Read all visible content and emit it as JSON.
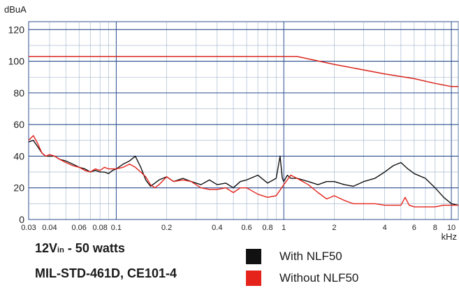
{
  "chart_data": {
    "type": "line",
    "ylabel": "dBuA",
    "xlabel": "kHz",
    "x_scale": "log",
    "xlim": [
      0.03,
      11
    ],
    "ylim": [
      0,
      125
    ],
    "x_ticks": [
      {
        "v": 0.03,
        "label": "0.03"
      },
      {
        "v": 0.04,
        "label": "0.04"
      },
      {
        "v": 0.06,
        "label": "0.06"
      },
      {
        "v": 0.08,
        "label": "0.08"
      },
      {
        "v": 0.1,
        "label": "0.1"
      },
      {
        "v": 0.2,
        "label": "0.2"
      },
      {
        "v": 0.4,
        "label": "0.4"
      },
      {
        "v": 0.6,
        "label": "0.6"
      },
      {
        "v": 0.8,
        "label": "0.8"
      },
      {
        "v": 1,
        "label": "1"
      },
      {
        "v": 2,
        "label": "2"
      },
      {
        "v": 4,
        "label": "4"
      },
      {
        "v": 6,
        "label": "6"
      },
      {
        "v": 8,
        "label": "8"
      },
      {
        "v": 10,
        "label": "10"
      }
    ],
    "y_ticks": [
      0,
      20,
      40,
      60,
      80,
      100,
      120
    ],
    "grid": true,
    "legend_position": "bottom-right",
    "limit": {
      "color": "#d9261c",
      "x": [
        0.03,
        1.0,
        1.2,
        2,
        4,
        6,
        8,
        10,
        11
      ],
      "y": [
        103,
        103,
        103,
        98,
        92,
        89,
        86,
        84,
        84
      ]
    },
    "series": [
      {
        "name": "With NLF50",
        "color": "#111111",
        "x": [
          0.03,
          0.032,
          0.034,
          0.036,
          0.038,
          0.04,
          0.043,
          0.046,
          0.05,
          0.055,
          0.06,
          0.065,
          0.07,
          0.075,
          0.08,
          0.085,
          0.09,
          0.095,
          0.1,
          0.11,
          0.12,
          0.13,
          0.14,
          0.15,
          0.16,
          0.17,
          0.18,
          0.2,
          0.22,
          0.25,
          0.28,
          0.32,
          0.36,
          0.4,
          0.45,
          0.5,
          0.55,
          0.6,
          0.7,
          0.8,
          0.9,
          0.95,
          0.98,
          1.0,
          1.05,
          1.1,
          1.2,
          1.4,
          1.6,
          1.8,
          2.0,
          2.3,
          2.6,
          3.0,
          3.5,
          4.0,
          4.5,
          5.0,
          5.5,
          6.0,
          7.0,
          8.0,
          9.0,
          10.0,
          11.0
        ],
        "y": [
          49,
          50,
          46,
          42,
          40,
          40,
          40,
          38,
          37,
          35,
          33,
          32,
          30,
          31,
          30,
          30,
          29,
          31,
          32,
          35,
          37,
          40,
          33,
          25,
          21,
          23,
          25,
          27,
          24,
          26,
          24,
          22,
          25,
          22,
          23,
          20,
          24,
          25,
          28,
          23,
          26,
          40,
          26,
          24,
          28,
          26,
          26,
          24,
          22,
          24,
          24,
          22,
          21,
          24,
          26,
          30,
          34,
          36,
          32,
          29,
          26,
          20,
          14,
          10,
          9
        ]
      },
      {
        "name": "Without NLF50",
        "color": "#e5231b",
        "x": [
          0.03,
          0.032,
          0.034,
          0.036,
          0.038,
          0.04,
          0.043,
          0.046,
          0.05,
          0.055,
          0.06,
          0.065,
          0.07,
          0.075,
          0.08,
          0.085,
          0.09,
          0.1,
          0.11,
          0.12,
          0.13,
          0.14,
          0.15,
          0.16,
          0.17,
          0.18,
          0.2,
          0.22,
          0.25,
          0.28,
          0.32,
          0.36,
          0.4,
          0.45,
          0.5,
          0.55,
          0.6,
          0.7,
          0.8,
          0.9,
          1.0,
          1.1,
          1.2,
          1.4,
          1.6,
          1.8,
          2.0,
          2.3,
          2.6,
          3.0,
          3.5,
          4.0,
          4.5,
          5.0,
          5.3,
          5.6,
          6.0,
          7.0,
          8.0,
          9.0,
          10.0,
          11.0
        ],
        "y": [
          50,
          53,
          48,
          42,
          40,
          41,
          40,
          38,
          36,
          34,
          33,
          31,
          30,
          32,
          31,
          33,
          32,
          32,
          33,
          35,
          33,
          30,
          27,
          22,
          20,
          22,
          27,
          24,
          25,
          24,
          20,
          19,
          19,
          20,
          17,
          20,
          20,
          16,
          14,
          15,
          22,
          28,
          26,
          22,
          17,
          13,
          15,
          12,
          10,
          10,
          10,
          9,
          9,
          9,
          14,
          9,
          8,
          8,
          8,
          9,
          9,
          9
        ]
      }
    ]
  },
  "captions": {
    "line1_main": "12V",
    "line1_sub": "in",
    "line1_tail": " - 50 watts",
    "line2": "MIL-STD-461D, CE101-4"
  },
  "legend": [
    {
      "label": "With NLF50",
      "color": "#111111"
    },
    {
      "label": "Without NLF50",
      "color": "#e5231b"
    }
  ]
}
